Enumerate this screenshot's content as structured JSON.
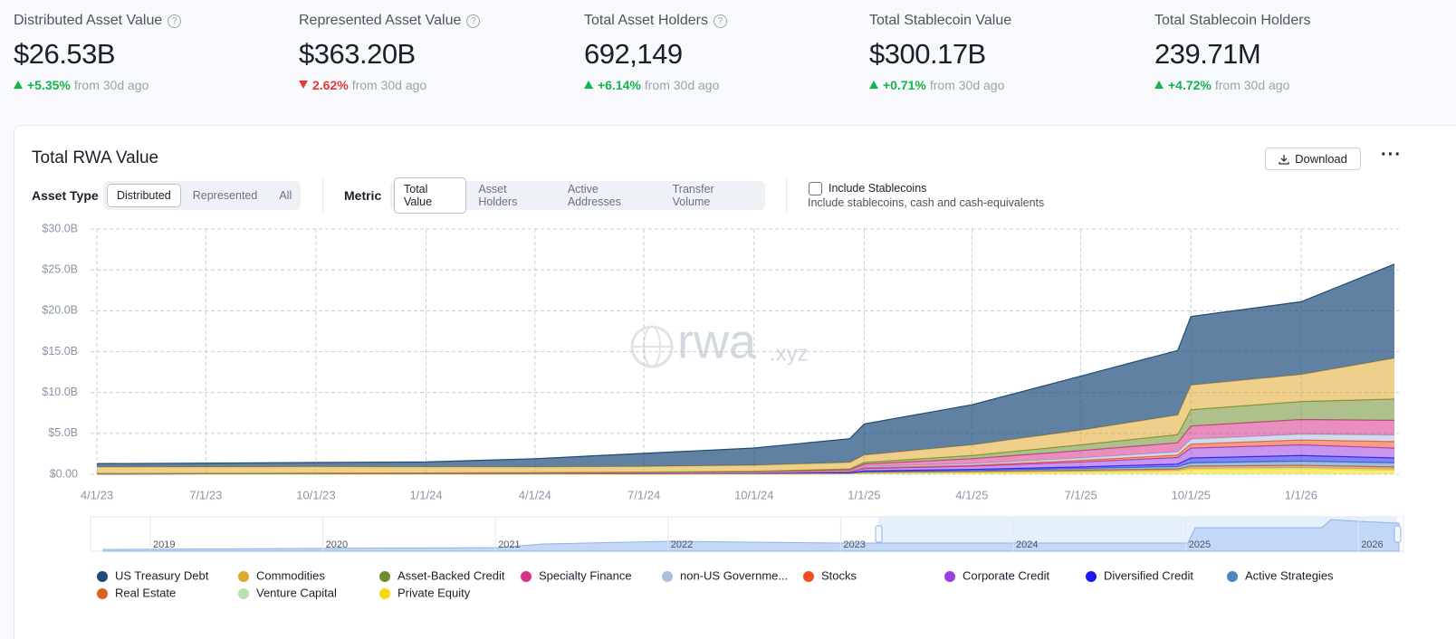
{
  "stats": [
    {
      "label": "Distributed Asset Value",
      "info": true,
      "value": "$26.53B",
      "change": "+5.35%",
      "trend": "up",
      "note": "from 30d ago"
    },
    {
      "label": "Represented Asset Value",
      "info": true,
      "value": "$363.20B",
      "change": "2.62%",
      "trend": "down",
      "note": "from 30d ago"
    },
    {
      "label": "Total Asset Holders",
      "info": true,
      "value": "692,149",
      "change": "+6.14%",
      "trend": "up",
      "note": "from 30d ago"
    },
    {
      "label": "Total Stablecoin Value",
      "info": false,
      "value": "$300.17B",
      "change": "+0.71%",
      "trend": "up",
      "note": "from 30d ago"
    },
    {
      "label": "Total Stablecoin Holders",
      "info": false,
      "value": "239.71M",
      "change": "+4.72%",
      "trend": "up",
      "note": "from 30d ago"
    }
  ],
  "controls": {
    "download": "Download",
    "asset_type": {
      "label": "Asset Type",
      "options": [
        "Distributed",
        "Represented",
        "All"
      ],
      "selected": 0
    },
    "metric": {
      "label": "Metric",
      "options": [
        "Total Value",
        "Asset Holders",
        "Active Addresses",
        "Transfer Volume"
      ],
      "selected": 0
    },
    "stablecoins": {
      "label": "Include Stablecoins",
      "description": "Include stablecoins, cash and cash-equivalents"
    }
  },
  "navigator": {
    "labels": [
      "2019",
      "2020",
      "2021",
      "2022",
      "2023",
      "2024",
      "2025",
      "2026"
    ]
  },
  "chart_data": {
    "type": "stacked-area",
    "title": "Total RWA Value",
    "watermark": "rwa",
    "watermark_suffix": ".xyz",
    "x": [
      "4/1/23",
      "7/1/23",
      "10/1/23",
      "1/1/24",
      "4/1/24",
      "7/1/24",
      "10/1/24",
      "12/20/24",
      "1/1/25",
      "4/1/25",
      "7/1/25",
      "9/20/25",
      "10/1/25",
      "1/1/26",
      "3/20/26"
    ],
    "xlim": [
      "4/1/23",
      "3/20/26"
    ],
    "xticks": [
      "4/1/23",
      "7/1/23",
      "10/1/23",
      "1/1/24",
      "4/1/24",
      "7/1/24",
      "10/1/24",
      "1/1/25",
      "4/1/25",
      "7/1/25",
      "10/1/25",
      "1/1/26"
    ],
    "ylim": [
      0,
      30
    ],
    "yticks": [
      {
        "value": 0,
        "label": "$0.00"
      },
      {
        "value": 5,
        "label": "$5.0B"
      },
      {
        "value": 10,
        "label": "$10.0B"
      },
      {
        "value": 15,
        "label": "$15.0B"
      },
      {
        "value": 20,
        "label": "$20.0B"
      },
      {
        "value": 25,
        "label": "$25.0B"
      },
      {
        "value": 30,
        "label": "$30.0B"
      }
    ],
    "grid": true,
    "series": [
      {
        "name": "US Treasury Debt",
        "color": "#1d4b7a",
        "values": [
          0.4,
          0.45,
          0.5,
          0.6,
          1.0,
          1.6,
          2.1,
          2.9,
          3.8,
          4.9,
          6.6,
          7.9,
          8.4,
          8.9,
          11.5
        ]
      },
      {
        "name": "Commodities",
        "color": "#e0a82e",
        "values": [
          0.8,
          0.8,
          0.8,
          0.75,
          0.7,
          0.7,
          0.75,
          0.8,
          0.9,
          1.3,
          1.8,
          2.4,
          3.0,
          3.3,
          5.0
        ]
      },
      {
        "name": "Asset-Backed Credit",
        "color": "#6b8e2f",
        "values": [
          0.02,
          0.02,
          0.03,
          0.03,
          0.04,
          0.05,
          0.06,
          0.1,
          0.2,
          0.4,
          0.7,
          1.0,
          2.0,
          2.2,
          2.6
        ]
      },
      {
        "name": "Specialty Finance",
        "color": "#d6338a",
        "values": [
          0.01,
          0.01,
          0.01,
          0.02,
          0.02,
          0.03,
          0.05,
          0.1,
          0.3,
          0.6,
          0.9,
          1.1,
          1.6,
          1.8,
          1.8
        ]
      },
      {
        "name": "non-US Governme...",
        "color": "#a9bfdc",
        "values": [
          0.02,
          0.02,
          0.03,
          0.03,
          0.05,
          0.05,
          0.06,
          0.1,
          0.15,
          0.2,
          0.3,
          0.4,
          0.6,
          0.7,
          0.8
        ]
      },
      {
        "name": "Stocks",
        "color": "#f04e1f",
        "values": [
          0,
          0,
          0,
          0,
          0,
          0.01,
          0.02,
          0.05,
          0.1,
          0.1,
          0.2,
          0.3,
          0.5,
          0.6,
          0.8
        ]
      },
      {
        "name": "Corporate Credit",
        "color": "#9b3fe0",
        "values": [
          0,
          0,
          0,
          0.01,
          0.01,
          0.02,
          0.05,
          0.1,
          0.3,
          0.4,
          0.6,
          0.8,
          1.2,
          1.3,
          1.2
        ]
      },
      {
        "name": "Diversified Credit",
        "color": "#1b1bf0",
        "values": [
          0,
          0,
          0,
          0,
          0,
          0,
          0.01,
          0.05,
          0.1,
          0.15,
          0.2,
          0.3,
          0.6,
          0.7,
          0.6
        ]
      },
      {
        "name": "Active Strategies",
        "color": "#4a86c0",
        "values": [
          0,
          0,
          0,
          0,
          0,
          0,
          0,
          0.02,
          0.05,
          0.1,
          0.2,
          0.3,
          0.4,
          0.5,
          0.5
        ]
      },
      {
        "name": "Real Estate",
        "color": "#d9641e",
        "values": [
          0.02,
          0.02,
          0.03,
          0.03,
          0.03,
          0.04,
          0.04,
          0.05,
          0.1,
          0.1,
          0.15,
          0.2,
          0.3,
          0.3,
          0.3
        ]
      },
      {
        "name": "Venture Capital",
        "color": "#b6e3b0",
        "values": [
          0.02,
          0.02,
          0.02,
          0.02,
          0.02,
          0.03,
          0.03,
          0.03,
          0.05,
          0.05,
          0.05,
          0.05,
          0.1,
          0.1,
          0.1
        ]
      },
      {
        "name": "Private Equity",
        "color": "#f5d90a",
        "values": [
          0.01,
          0.02,
          0.02,
          0.02,
          0.03,
          0.03,
          0.04,
          0.05,
          0.1,
          0.2,
          0.3,
          0.4,
          0.6,
          0.7,
          0.5
        ]
      }
    ]
  }
}
